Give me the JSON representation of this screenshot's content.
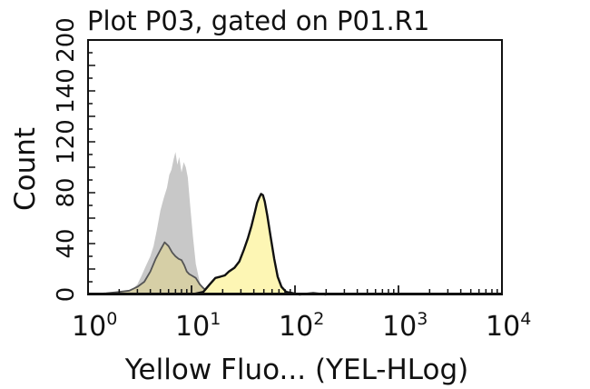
{
  "chart_data": {
    "type": "area",
    "title": "Plot P03, gated on P01.R1",
    "xlabel": "Yellow Fluo... (YEL-HLog)",
    "ylabel": "Count",
    "x_scale": "log",
    "xlim": [
      1,
      10000
    ],
    "ylim": [
      0,
      200
    ],
    "x_ticks": [
      {
        "base": "10",
        "exp": "0"
      },
      {
        "base": "10",
        "exp": "1"
      },
      {
        "base": "10",
        "exp": "2"
      },
      {
        "base": "10",
        "exp": "3"
      },
      {
        "base": "10",
        "exp": "4"
      }
    ],
    "y_ticks": [
      "0",
      "40",
      "80",
      "120",
      "140",
      "200"
    ],
    "grid": false,
    "series": [
      {
        "color": "#c8c8c8",
        "stroke": "none",
        "points": [
          [
            1.0,
            0
          ],
          [
            2.0,
            0
          ],
          [
            2.6,
            3
          ],
          [
            3.0,
            8
          ],
          [
            3.3,
            15
          ],
          [
            3.6,
            22
          ],
          [
            4.0,
            30
          ],
          [
            4.3,
            38
          ],
          [
            4.6,
            50
          ],
          [
            5.0,
            66
          ],
          [
            5.4,
            76
          ],
          [
            5.8,
            84
          ],
          [
            6.1,
            94
          ],
          [
            6.4,
            98
          ],
          [
            6.7,
            106
          ],
          [
            7.0,
            112
          ],
          [
            7.3,
            102
          ],
          [
            7.6,
            108
          ],
          [
            8.0,
            96
          ],
          [
            8.4,
            104
          ],
          [
            8.8,
            100
          ],
          [
            9.2,
            92
          ],
          [
            9.7,
            70
          ],
          [
            10.3,
            46
          ],
          [
            11.0,
            24
          ],
          [
            12.0,
            10
          ],
          [
            13.0,
            4
          ],
          [
            14.0,
            1
          ],
          [
            15.0,
            0
          ]
        ]
      },
      {
        "color": "#d8d0a0",
        "stroke": "#555555",
        "points": [
          [
            1.0,
            0
          ],
          [
            1.5,
            1
          ],
          [
            2.0,
            2
          ],
          [
            2.5,
            3
          ],
          [
            3.0,
            6
          ],
          [
            3.5,
            10
          ],
          [
            4.0,
            18
          ],
          [
            4.5,
            28
          ],
          [
            5.0,
            35
          ],
          [
            5.5,
            41
          ],
          [
            6.0,
            38
          ],
          [
            6.5,
            33
          ],
          [
            7.0,
            30
          ],
          [
            7.5,
            28
          ],
          [
            8.0,
            27
          ],
          [
            8.5,
            23
          ],
          [
            9.0,
            18
          ],
          [
            9.5,
            16
          ],
          [
            10.0,
            15
          ],
          [
            11.0,
            13
          ],
          [
            12.0,
            8
          ],
          [
            13.0,
            5
          ],
          [
            14.0,
            3
          ],
          [
            16.0,
            1
          ],
          [
            18.0,
            0
          ]
        ]
      },
      {
        "color": "#fdf6b4",
        "stroke": "#111111",
        "points": [
          [
            10,
            0
          ],
          [
            13,
            2
          ],
          [
            15,
            8
          ],
          [
            17,
            13
          ],
          [
            19,
            14
          ],
          [
            21,
            15
          ],
          [
            23,
            18
          ],
          [
            26,
            21
          ],
          [
            29,
            26
          ],
          [
            32,
            35
          ],
          [
            35,
            44
          ],
          [
            38,
            54
          ],
          [
            41,
            65
          ],
          [
            43,
            72
          ],
          [
            45,
            76
          ],
          [
            47,
            79
          ],
          [
            49,
            78
          ],
          [
            51,
            73
          ],
          [
            54,
            62
          ],
          [
            58,
            46
          ],
          [
            63,
            28
          ],
          [
            68,
            14
          ],
          [
            74,
            6
          ],
          [
            82,
            2
          ],
          [
            95,
            1
          ],
          [
            110,
            0
          ],
          [
            150,
            1
          ],
          [
            200,
            0
          ]
        ]
      }
    ]
  }
}
